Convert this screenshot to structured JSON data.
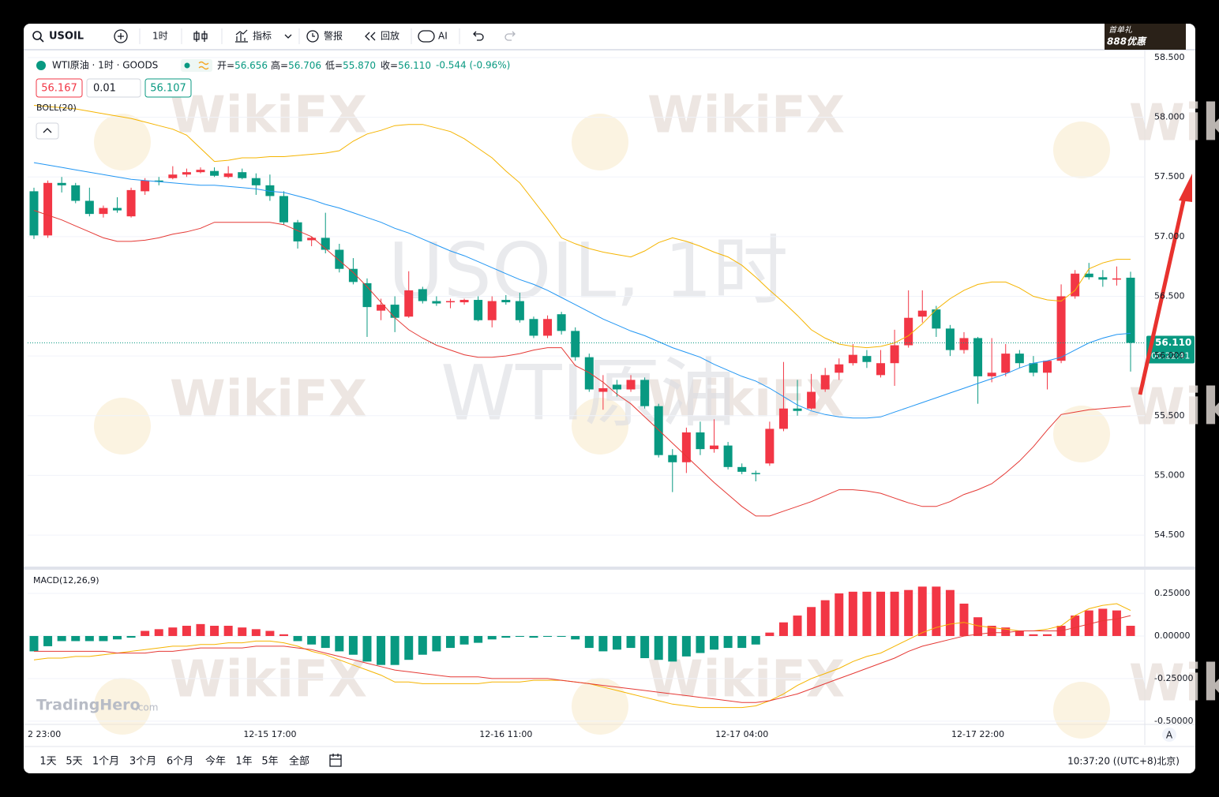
{
  "toolbar": {
    "symbol": "USOIL",
    "interval": "1时",
    "indicators": "指标",
    "alert": "警报",
    "replay": "回放",
    "ai": "AI"
  },
  "ad": {
    "line1": "首单礼",
    "line2": "888优惠"
  },
  "legend": {
    "title": "WTI原油 · 1时 · GOODS",
    "fields": [
      {
        "label": "开=",
        "value": "56.656"
      },
      {
        "label": "高=",
        "value": "56.706"
      },
      {
        "label": "低=",
        "value": "55.870"
      },
      {
        "label": "收=",
        "value": "56.110"
      }
    ],
    "change": "-0.544 (-0.96%)"
  },
  "order": {
    "sell": "56.167",
    "qty": "0.01",
    "buy": "56.107"
  },
  "watermark": {
    "brand": "WikiFX",
    "symbol": "USOIL, 1时",
    "name": "WTI原油",
    "logo": "TradingHero",
    "logo_suffix": ".com"
  },
  "chart_data": [
    {
      "type": "candlestick",
      "indicator": "BOLL(20)",
      "categories": [
        "2 23:00",
        null,
        null,
        null,
        null,
        null,
        null,
        null,
        null,
        null,
        null,
        null,
        null,
        null,
        null,
        null,
        null,
        "12-15 17:00",
        null,
        null,
        null,
        null,
        null,
        null,
        null,
        null,
        null,
        null,
        null,
        null,
        null,
        null,
        null,
        null,
        "12-16 11:00",
        null,
        null,
        null,
        null,
        null,
        null,
        null,
        null,
        null,
        null,
        null,
        null,
        null,
        null,
        null,
        null,
        "12-17 04:00",
        null,
        null,
        null,
        null,
        null,
        null,
        null,
        null,
        null,
        null,
        null,
        null,
        null,
        null,
        null,
        null,
        "12-17 22:00",
        null,
        null,
        null,
        null,
        null,
        null,
        null,
        null,
        null,
        null,
        null
      ],
      "open": [
        57.38,
        57.01,
        57.45,
        57.43,
        57.3,
        57.19,
        57.24,
        57.17,
        57.38,
        57.47,
        57.49,
        57.52,
        57.54,
        57.55,
        57.5,
        57.54,
        57.49,
        57.43,
        57.34,
        57.12,
        56.97,
        56.99,
        56.89,
        56.73,
        56.61,
        56.38,
        56.43,
        56.33,
        56.56,
        56.46,
        56.45,
        56.45,
        56.47,
        56.3,
        56.47,
        56.46,
        56.31,
        56.17,
        56.35,
        56.21,
        55.99,
        55.7,
        55.76,
        55.72,
        55.8,
        55.58,
        55.17,
        55.11,
        55.36,
        55.22,
        55.25,
        55.07,
        55.02,
        55.1,
        55.39,
        55.56,
        55.56,
        55.72,
        55.86,
        55.94,
        56.0,
        55.84,
        55.94,
        56.09,
        56.33,
        56.39,
        56.23,
        56.05,
        56.15,
        55.83,
        55.86,
        56.02,
        55.94,
        55.86,
        55.96,
        56.5,
        56.69,
        56.66,
        56.64,
        56.656
      ],
      "high": [
        57.41,
        57.47,
        57.5,
        57.45,
        57.41,
        57.26,
        57.33,
        57.41,
        57.49,
        57.5,
        57.59,
        57.57,
        57.58,
        57.58,
        57.59,
        57.57,
        57.53,
        57.52,
        57.38,
        57.14,
        57.0,
        57.2,
        56.94,
        56.82,
        56.65,
        56.48,
        56.5,
        56.71,
        56.58,
        56.5,
        56.48,
        56.48,
        56.5,
        56.5,
        56.51,
        56.53,
        56.33,
        56.34,
        56.37,
        56.24,
        56.02,
        55.84,
        55.8,
        55.84,
        55.82,
        55.6,
        55.22,
        55.4,
        55.45,
        55.47,
        55.28,
        55.1,
        55.04,
        55.45,
        55.95,
        55.8,
        55.85,
        55.9,
        55.98,
        56.1,
        56.05,
        56.05,
        56.22,
        56.55,
        56.55,
        56.42,
        56.26,
        56.2,
        56.16,
        56.15,
        56.1,
        56.05,
        56.0,
        55.96,
        56.6,
        56.72,
        56.78,
        56.72,
        56.75,
        56.706
      ],
      "low": [
        56.98,
        56.99,
        57.37,
        57.28,
        57.17,
        57.16,
        57.2,
        57.16,
        57.35,
        57.43,
        57.48,
        57.5,
        57.53,
        57.5,
        57.49,
        57.48,
        57.35,
        57.3,
        57.1,
        56.9,
        56.92,
        56.86,
        56.7,
        56.6,
        56.16,
        56.3,
        56.2,
        56.32,
        56.44,
        56.42,
        56.4,
        56.43,
        56.29,
        56.24,
        56.43,
        56.28,
        56.15,
        56.15,
        56.18,
        55.96,
        55.7,
        55.55,
        55.66,
        55.7,
        55.56,
        55.15,
        54.86,
        55.02,
        55.17,
        55.19,
        55.05,
        55.01,
        54.95,
        55.08,
        55.37,
        55.5,
        55.55,
        55.7,
        55.8,
        55.92,
        55.9,
        55.82,
        55.75,
        56.07,
        56.28,
        56.16,
        56.0,
        56.02,
        55.6,
        55.78,
        55.83,
        55.9,
        55.83,
        55.72,
        55.94,
        56.48,
        56.64,
        56.58,
        56.59,
        55.87
      ],
      "close": [
        57.01,
        57.45,
        57.43,
        57.3,
        57.19,
        57.24,
        57.22,
        57.39,
        57.47,
        57.46,
        57.52,
        57.54,
        57.56,
        57.51,
        57.53,
        57.49,
        57.43,
        57.34,
        57.12,
        56.96,
        56.99,
        56.89,
        56.73,
        56.62,
        56.41,
        56.43,
        56.32,
        56.55,
        56.46,
        56.44,
        56.46,
        56.47,
        56.3,
        56.46,
        56.45,
        56.3,
        56.17,
        56.31,
        56.21,
        55.99,
        55.72,
        55.73,
        55.72,
        55.8,
        55.58,
        55.17,
        55.11,
        55.36,
        55.22,
        55.25,
        55.07,
        55.03,
        55.01,
        55.39,
        55.56,
        55.54,
        55.7,
        55.84,
        55.93,
        56.01,
        55.95,
        55.94,
        56.09,
        56.32,
        56.38,
        56.23,
        56.05,
        56.15,
        55.83,
        55.86,
        56.02,
        55.94,
        55.86,
        55.96,
        56.5,
        56.69,
        56.66,
        56.64,
        56.65,
        56.11
      ],
      "up_color": "#f23645",
      "down_color": "#089981",
      "lines": [
        {
          "color": "#f5b400",
          "values": [
            58.1,
            58.09,
            58.08,
            58.07,
            58.05,
            58.03,
            58.01,
            57.99,
            57.96,
            57.93,
            57.9,
            57.85,
            57.74,
            57.63,
            57.64,
            57.66,
            57.66,
            57.67,
            57.67,
            57.68,
            57.69,
            57.7,
            57.72,
            57.8,
            57.86,
            57.89,
            57.93,
            57.94,
            57.94,
            57.91,
            57.88,
            57.82,
            57.74,
            57.66,
            57.55,
            57.45,
            57.3,
            57.15,
            56.99,
            56.94,
            56.9,
            56.87,
            56.85,
            56.83,
            56.88,
            56.95,
            56.99,
            56.96,
            56.92,
            56.87,
            56.83,
            56.76,
            56.66,
            56.55,
            56.45,
            56.34,
            56.22,
            56.15,
            56.1,
            56.08,
            56.07,
            56.08,
            56.11,
            56.17,
            56.27,
            56.39,
            56.48,
            56.55,
            56.6,
            56.62,
            56.62,
            56.57,
            56.5,
            56.47,
            56.46,
            56.55,
            56.73,
            56.78,
            56.81,
            56.81
          ]
        },
        {
          "color": "#2196f3",
          "values": [
            57.62,
            57.6,
            57.58,
            57.56,
            57.54,
            57.52,
            57.5,
            57.48,
            57.47,
            57.46,
            57.45,
            57.44,
            57.43,
            57.43,
            57.42,
            57.41,
            57.4,
            57.38,
            57.37,
            57.34,
            57.31,
            57.27,
            57.24,
            57.2,
            57.16,
            57.12,
            57.07,
            57.03,
            56.98,
            56.93,
            56.88,
            56.84,
            56.79,
            56.74,
            56.69,
            56.64,
            56.6,
            56.55,
            56.49,
            56.43,
            56.37,
            56.31,
            56.26,
            56.21,
            56.17,
            56.12,
            56.07,
            56.03,
            55.99,
            55.93,
            55.88,
            55.83,
            55.79,
            55.73,
            55.66,
            55.59,
            55.54,
            55.51,
            55.49,
            55.48,
            55.48,
            55.49,
            55.53,
            55.57,
            55.61,
            55.65,
            55.69,
            55.73,
            55.77,
            55.81,
            55.85,
            55.9,
            55.94,
            55.96,
            55.99,
            56.05,
            56.11,
            56.15,
            56.18,
            56.19
          ]
        },
        {
          "color": "#e53935",
          "values": [
            57.22,
            57.18,
            57.14,
            57.09,
            57.04,
            56.99,
            56.96,
            56.96,
            56.97,
            56.99,
            57.02,
            57.04,
            57.07,
            57.12,
            57.12,
            57.12,
            57.12,
            57.12,
            57.1,
            57.05,
            57.0,
            56.9,
            56.8,
            56.7,
            56.58,
            56.45,
            56.32,
            56.22,
            56.15,
            56.09,
            56.05,
            56.01,
            55.99,
            55.99,
            56.0,
            56.02,
            56.05,
            56.07,
            56.07,
            55.92,
            55.86,
            55.78,
            55.68,
            55.6,
            55.49,
            55.38,
            55.27,
            55.16,
            55.05,
            54.94,
            54.84,
            54.74,
            54.66,
            54.66,
            54.7,
            54.74,
            54.78,
            54.83,
            54.88,
            54.88,
            54.87,
            54.85,
            54.81,
            54.77,
            54.74,
            54.74,
            54.78,
            54.84,
            54.88,
            54.93,
            55.02,
            55.12,
            55.24,
            55.38,
            55.51,
            55.53,
            55.55,
            55.56,
            55.57,
            55.58
          ]
        }
      ],
      "last_price": {
        "value": 56.11,
        "label": "56.110"
      },
      "countdown": "00:22:41",
      "last_price_color": "#089981",
      "ylim": [
        54.236,
        58.546
      ],
      "yticks": [
        {
          "value": 54.5,
          "label": "54.500"
        },
        {
          "value": 55,
          "label": "55.000"
        },
        {
          "value": 55.5,
          "label": "55.500"
        },
        {
          "value": 56,
          "label": "56.000"
        },
        {
          "value": 56.5,
          "label": "56.500"
        },
        {
          "value": 57,
          "label": "57.000"
        },
        {
          "value": 57.5,
          "label": "57.500"
        },
        {
          "value": 58,
          "label": "58.000"
        },
        {
          "value": 58.5,
          "label": "58.500"
        }
      ],
      "grid": true
    },
    {
      "type": "macd",
      "indicator": "MACD(12,26,9)",
      "histogram": [
        -0.09,
        -0.06,
        -0.03,
        -0.03,
        -0.03,
        -0.03,
        -0.02,
        -0.01,
        0.03,
        0.04,
        0.05,
        0.06,
        0.07,
        0.06,
        0.06,
        0.05,
        0.04,
        0.03,
        0.01,
        -0.03,
        -0.05,
        -0.07,
        -0.09,
        -0.11,
        -0.15,
        -0.17,
        -0.17,
        -0.14,
        -0.11,
        -0.09,
        -0.07,
        -0.05,
        -0.04,
        -0.02,
        -0.01,
        -0.005,
        -0.01,
        -0.005,
        -0.005,
        -0.02,
        -0.07,
        -0.09,
        -0.08,
        -0.07,
        -0.13,
        -0.14,
        -0.15,
        -0.12,
        -0.1,
        -0.08,
        -0.07,
        -0.07,
        -0.05,
        0.02,
        0.08,
        0.12,
        0.17,
        0.21,
        0.25,
        0.26,
        0.26,
        0.26,
        0.26,
        0.27,
        0.29,
        0.29,
        0.27,
        0.19,
        0.11,
        0.06,
        0.05,
        0.03,
        0.01,
        0.01,
        0.06,
        0.12,
        0.15,
        0.16,
        0.15,
        0.06
      ],
      "up_color": "#f23645",
      "down_color": "#089981",
      "lines": [
        {
          "color": "#f5b400",
          "values": [
            -0.14,
            -0.13,
            -0.13,
            -0.12,
            -0.12,
            -0.11,
            -0.1,
            -0.09,
            -0.08,
            -0.07,
            -0.06,
            -0.06,
            -0.05,
            -0.05,
            -0.04,
            -0.04,
            -0.03,
            -0.03,
            -0.04,
            -0.06,
            -0.09,
            -0.11,
            -0.14,
            -0.17,
            -0.2,
            -0.23,
            -0.27,
            -0.27,
            -0.28,
            -0.28,
            -0.28,
            -0.28,
            -0.28,
            -0.27,
            -0.27,
            -0.27,
            -0.26,
            -0.26,
            -0.26,
            -0.27,
            -0.28,
            -0.3,
            -0.32,
            -0.34,
            -0.36,
            -0.38,
            -0.4,
            -0.41,
            -0.42,
            -0.42,
            -0.42,
            -0.42,
            -0.41,
            -0.38,
            -0.34,
            -0.29,
            -0.25,
            -0.22,
            -0.19,
            -0.15,
            -0.12,
            -0.1,
            -0.06,
            -0.02,
            0.02,
            0.05,
            0.07,
            0.08,
            0.06,
            0.05,
            0.04,
            0.03,
            0.03,
            0.04,
            0.06,
            0.12,
            0.16,
            0.18,
            0.19,
            0.15
          ]
        },
        {
          "color": "#e53935",
          "values": [
            -0.09,
            -0.09,
            -0.09,
            -0.09,
            -0.09,
            -0.09,
            -0.1,
            -0.1,
            -0.1,
            -0.09,
            -0.09,
            -0.08,
            -0.07,
            -0.07,
            -0.07,
            -0.07,
            -0.06,
            -0.06,
            -0.06,
            -0.07,
            -0.08,
            -0.1,
            -0.12,
            -0.14,
            -0.16,
            -0.18,
            -0.2,
            -0.21,
            -0.22,
            -0.23,
            -0.24,
            -0.24,
            -0.24,
            -0.25,
            -0.25,
            -0.25,
            -0.25,
            -0.25,
            -0.26,
            -0.27,
            -0.28,
            -0.29,
            -0.3,
            -0.31,
            -0.32,
            -0.33,
            -0.34,
            -0.35,
            -0.36,
            -0.37,
            -0.38,
            -0.39,
            -0.39,
            -0.38,
            -0.36,
            -0.34,
            -0.31,
            -0.28,
            -0.25,
            -0.22,
            -0.19,
            -0.16,
            -0.13,
            -0.09,
            -0.06,
            -0.04,
            -0.02,
            0.0,
            0.01,
            0.02,
            0.02,
            0.03,
            0.03,
            0.03,
            0.03,
            0.05,
            0.07,
            0.09,
            0.1,
            0.12
          ]
        }
      ],
      "ylim": [
        -0.519,
        0.389
      ],
      "yticks": [
        {
          "value": -0.5,
          "label": "-0.50000"
        },
        {
          "value": -0.25,
          "label": "-0.25000"
        },
        {
          "value": 0,
          "label": "0.00000"
        },
        {
          "value": 0.25,
          "label": "0.25000"
        }
      ],
      "grid": true
    }
  ],
  "time_axis_button": "A",
  "bottom_bar": {
    "ranges": [
      "1天",
      "5天",
      "1个月",
      "3个月",
      "6个月",
      "今年",
      "1年",
      "5年",
      "全部"
    ],
    "clock": "10:37:20 ((UTC+8)北京)"
  }
}
